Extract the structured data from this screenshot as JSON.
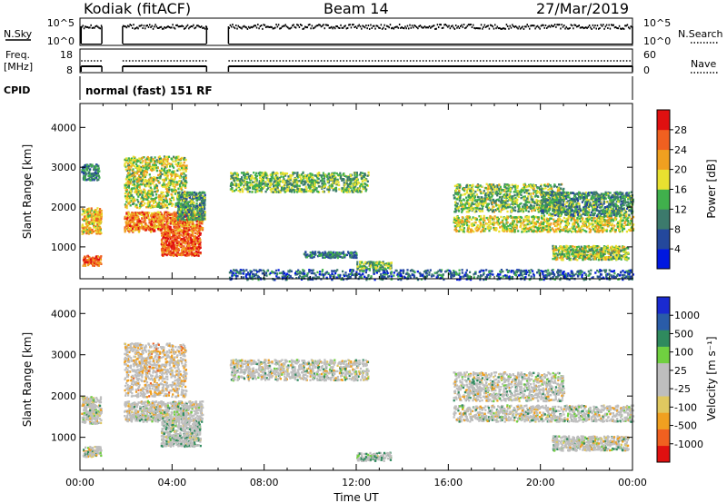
{
  "header": {
    "station": "Kodiak (fitACF)",
    "beam": "Beam 14",
    "date": "27/Mar/2019"
  },
  "status_panels": {
    "nsky_label": "N.Sky",
    "nsearch_label": "N.Search",
    "nsky_ticks": [
      "10^5",
      "10^0"
    ],
    "nsearch_ticks": [
      "10^5",
      "10^0"
    ],
    "freq_label": "Freq.",
    "freq_unit": "[MHz]",
    "freq_ticks": [
      "18",
      "8"
    ],
    "nave_label": "Nave",
    "nave_ticks": [
      "60",
      "0"
    ],
    "cpid_label": "CPID",
    "cpid_text": "normal (fast) 151 RF"
  },
  "colors": {
    "power_scale": [
      "#0018e0",
      "#24489c",
      "#3c7a6c",
      "#40b04c",
      "#e8e030",
      "#f0a020",
      "#f06020",
      "#e01010"
    ],
    "velocity_scale": [
      "#e01010",
      "#f06020",
      "#f0a020",
      "#e0c860",
      "#bebebe",
      "#bebebe",
      "#70d040",
      "#2f8a5e",
      "#2a5ca8",
      "#1a2ad0"
    ],
    "ground_scatter": "#bebebe"
  },
  "chart_data": [
    {
      "type": "heatmap",
      "title": "",
      "xlabel": "",
      "ylabel": "Slant Range [km]",
      "x_unit": "hours UT",
      "xlim": [
        0,
        24
      ],
      "ylim": [
        200,
        4600
      ],
      "yticks": [
        1000,
        2000,
        3000,
        4000
      ],
      "colorbar": {
        "label": "Power [dB]",
        "range": [
          0,
          32
        ],
        "ticks": [
          4,
          8,
          12,
          16,
          20,
          24,
          28
        ]
      },
      "data_gaps_hours": [
        [
          0.95,
          1.85
        ],
        [
          5.5,
          6.45
        ]
      ],
      "regions": [
        {
          "name": "early",
          "t": [
            0.05,
            0.9
          ],
          "r": [
            1350,
            2000
          ],
          "power": 20
        },
        {
          "name": "early-low",
          "t": [
            0.1,
            0.9
          ],
          "r": [
            550,
            800
          ],
          "power": 26
        },
        {
          "name": "early-far",
          "t": [
            0.05,
            0.8
          ],
          "r": [
            2700,
            3100
          ],
          "power": 10
        },
        {
          "name": "dawn-main",
          "t": [
            1.9,
            5.3
          ],
          "r": [
            1400,
            1900
          ],
          "power": 24
        },
        {
          "name": "dawn-tail",
          "t": [
            3.5,
            5.2
          ],
          "r": [
            800,
            1400
          ],
          "power": 26
        },
        {
          "name": "dawn-upper",
          "t": [
            1.9,
            4.6
          ],
          "r": [
            2000,
            3300
          ],
          "power": 17
        },
        {
          "name": "dawn-rise",
          "t": [
            4.2,
            5.4
          ],
          "r": [
            1700,
            2400
          ],
          "power": 12
        },
        {
          "name": "noon-band",
          "t": [
            6.5,
            12.5
          ],
          "r": [
            2400,
            2900
          ],
          "power": 14
        },
        {
          "name": "near-1",
          "t": [
            9.7,
            12.0
          ],
          "r": [
            750,
            900
          ],
          "power": 10
        },
        {
          "name": "near-2",
          "t": [
            12.0,
            13.5
          ],
          "r": [
            450,
            650
          ],
          "power": 14
        },
        {
          "name": "evening-main",
          "t": [
            16.2,
            24.0
          ],
          "r": [
            1400,
            1800
          ],
          "power": 18
        },
        {
          "name": "evening-upper",
          "t": [
            16.2,
            21.0
          ],
          "r": [
            1900,
            2600
          ],
          "power": 15
        },
        {
          "name": "evening-far",
          "t": [
            20.0,
            24.0
          ],
          "r": [
            1800,
            2400
          ],
          "power": 12
        },
        {
          "name": "evening-low",
          "t": [
            20.5,
            23.8
          ],
          "r": [
            700,
            1050
          ],
          "power": 16
        },
        {
          "name": "near-range",
          "t": [
            6.0,
            24.0
          ],
          "r": [
            200,
            450
          ],
          "power": 8
        }
      ]
    },
    {
      "type": "heatmap",
      "title": "",
      "xlabel": "Time UT",
      "ylabel": "Slant Range [km]",
      "x_unit": "hours UT",
      "xlim": [
        0,
        24
      ],
      "ylim": [
        200,
        4600
      ],
      "xticks": [
        "00:00",
        "04:00",
        "08:00",
        "12:00",
        "16:00",
        "20:00",
        "00:00"
      ],
      "yticks": [
        1000,
        2000,
        3000,
        4000
      ],
      "colorbar": {
        "label": "Velocity [m s⁻¹]",
        "range": [
          -1200,
          1200
        ],
        "ticks": [
          1000,
          500,
          100,
          25,
          -25,
          -100,
          -500,
          -1000
        ]
      },
      "data_gaps_hours": [
        [
          0.95,
          1.85
        ],
        [
          5.5,
          6.45
        ]
      ],
      "regions": [
        {
          "name": "early",
          "t": [
            0.05,
            0.9
          ],
          "r": [
            1350,
            2000
          ],
          "velocity": 0
        },
        {
          "name": "early-low",
          "t": [
            0.1,
            0.9
          ],
          "r": [
            550,
            800
          ],
          "velocity": 0
        },
        {
          "name": "dawn-main",
          "t": [
            1.9,
            5.3
          ],
          "r": [
            1400,
            1900
          ],
          "velocity": 0
        },
        {
          "name": "dawn-tail",
          "t": [
            3.5,
            5.2
          ],
          "r": [
            800,
            1400
          ],
          "velocity": 150
        },
        {
          "name": "dawn-upper",
          "t": [
            1.9,
            4.6
          ],
          "r": [
            2000,
            3300
          ],
          "velocity": -300
        },
        {
          "name": "noon-band",
          "t": [
            6.5,
            12.5
          ],
          "r": [
            2400,
            2900
          ],
          "velocity": 0
        },
        {
          "name": "near-2",
          "t": [
            12.0,
            13.5
          ],
          "r": [
            450,
            650
          ],
          "velocity": 200
        },
        {
          "name": "evening-main",
          "t": [
            16.2,
            24.0
          ],
          "r": [
            1400,
            1800
          ],
          "velocity": 0
        },
        {
          "name": "evening-upper",
          "t": [
            16.2,
            21.0
          ],
          "r": [
            1900,
            2600
          ],
          "velocity": 0
        },
        {
          "name": "evening-low",
          "t": [
            20.5,
            23.8
          ],
          "r": [
            700,
            1050
          ],
          "velocity": 0
        }
      ]
    }
  ]
}
